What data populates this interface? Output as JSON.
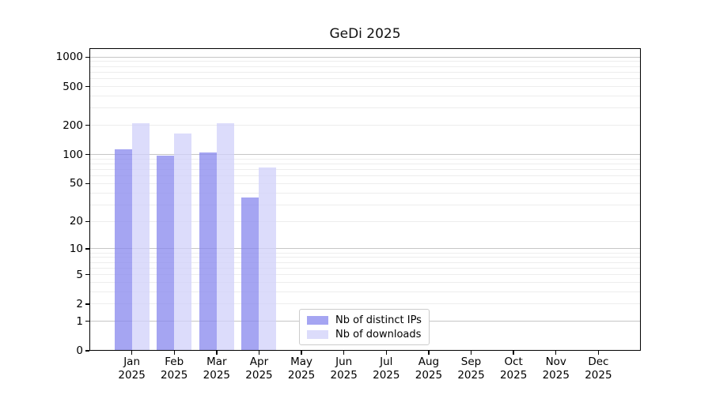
{
  "title": "GeDi 2025",
  "chart_data": {
    "type": "bar",
    "title": "GeDi 2025",
    "x_categories": [
      {
        "month": "Jan",
        "year": "2025"
      },
      {
        "month": "Feb",
        "year": "2025"
      },
      {
        "month": "Mar",
        "year": "2025"
      },
      {
        "month": "Apr",
        "year": "2025"
      },
      {
        "month": "May",
        "year": "2025"
      },
      {
        "month": "Jun",
        "year": "2025"
      },
      {
        "month": "Jul",
        "year": "2025"
      },
      {
        "month": "Aug",
        "year": "2025"
      },
      {
        "month": "Sep",
        "year": "2025"
      },
      {
        "month": "Oct",
        "year": "2025"
      },
      {
        "month": "Nov",
        "year": "2025"
      },
      {
        "month": "Dec",
        "year": "2025"
      }
    ],
    "series": [
      {
        "name": "Nb of distinct IPs",
        "color": "#8787ed",
        "values": [
          114,
          98,
          105,
          36,
          0,
          0,
          0,
          0,
          0,
          0,
          0,
          0
        ]
      },
      {
        "name": "Nb of downloads",
        "color": "#d0d0fa",
        "values": [
          210,
          165,
          210,
          73,
          0,
          0,
          0,
          0,
          0,
          0,
          0,
          0
        ]
      }
    ],
    "bar_opacity": 0.75,
    "yscale": "log1p",
    "ytick_values": [
      1000,
      500,
      200,
      100,
      50,
      20,
      10,
      5,
      2,
      1,
      0
    ],
    "ytick_labels": [
      "1000",
      "500",
      "200",
      "100",
      "50",
      "20",
      "10",
      "5",
      "2",
      "1",
      "0"
    ],
    "major_gridlines": [
      1,
      10,
      100,
      1000
    ],
    "minor_gridlines": [
      2,
      3,
      4,
      5,
      6,
      7,
      8,
      9,
      20,
      30,
      40,
      50,
      60,
      70,
      80,
      90,
      200,
      300,
      400,
      500,
      600,
      700,
      800,
      900
    ],
    "ylim": [
      0,
      1234
    ],
    "grid": true,
    "legend_position": "bottom-center"
  },
  "legend": {
    "items": [
      "Nb of distinct IPs",
      "Nb of downloads"
    ]
  },
  "colors": {
    "major_grid": "#c6c6c6",
    "minor_grid": "#ededed",
    "spine": "#000000",
    "legend_border": "#cccccc",
    "text": "#111111"
  }
}
